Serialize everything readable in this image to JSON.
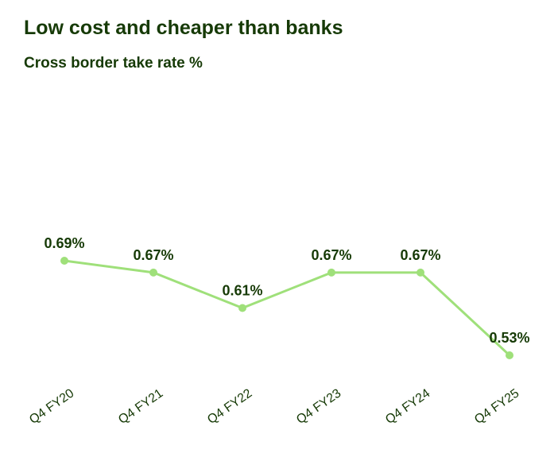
{
  "chart_data": {
    "type": "line",
    "title": "Low cost and cheaper than banks",
    "subtitle": "Cross border take rate %",
    "categories": [
      "Q4 FY20",
      "Q4 FY21",
      "Q4 FY22",
      "Q4 FY23",
      "Q4 FY24",
      "Q4 FY25"
    ],
    "series": [
      {
        "name": "Cross border take rate",
        "color": "#9fe07a",
        "values": [
          0.69,
          0.67,
          0.61,
          0.67,
          0.67,
          0.53
        ],
        "value_labels": [
          "0.69%",
          "0.67%",
          "0.61%",
          "0.67%",
          "0.67%",
          "0.53%"
        ]
      }
    ]
  }
}
